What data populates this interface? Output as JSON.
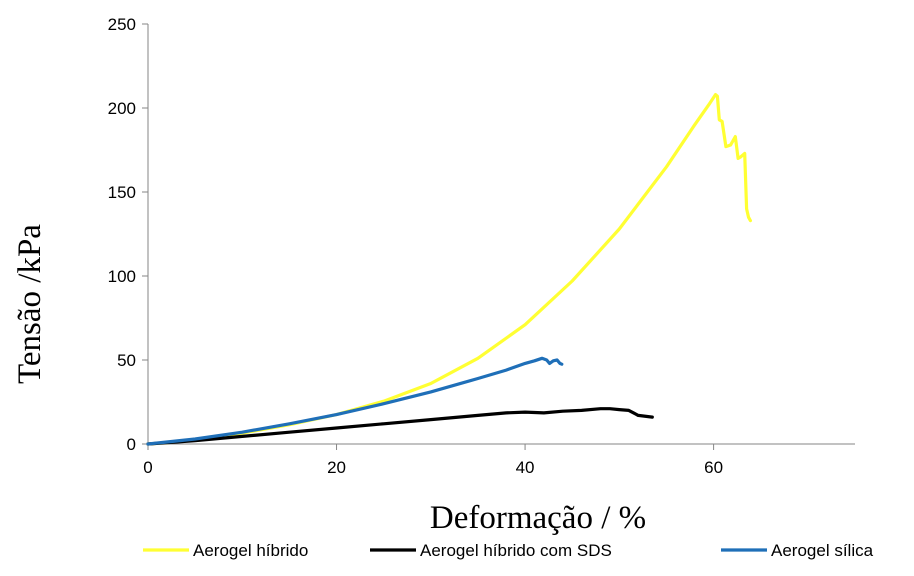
{
  "chart_data": {
    "type": "line",
    "title": "",
    "xlabel": "Deformação / %",
    "ylabel": "Tensão /kPa",
    "xlim": [
      0,
      75
    ],
    "ylim": [
      0,
      250
    ],
    "x_ticks": [
      0,
      20,
      40,
      60
    ],
    "y_ticks": [
      0,
      50,
      100,
      150,
      200,
      250
    ],
    "grid": false,
    "legend_position": "bottom",
    "series": [
      {
        "name": "Aerogel híbrido",
        "color": "#FFFF33",
        "x": [
          0,
          2,
          5,
          10,
          15,
          20,
          25,
          30,
          35,
          40,
          45,
          50,
          55,
          58,
          59.5,
          60.2,
          60.4,
          60.6,
          60.9,
          61.3,
          61.8,
          62.3,
          62.6,
          62.9,
          63.3,
          63.5,
          63.7,
          63.9
        ],
        "y": [
          0,
          0.8,
          2.5,
          6.5,
          11.5,
          17.5,
          25.5,
          36,
          51,
          71,
          97,
          128,
          165,
          190,
          202,
          208,
          207,
          193,
          192,
          177,
          178,
          183,
          170,
          171,
          173,
          140,
          135,
          133
        ]
      },
      {
        "name": "Aerogel híbrido com SDS",
        "color": "#000000",
        "x": [
          0,
          5,
          10,
          15,
          20,
          25,
          30,
          35,
          38,
          40,
          42,
          44,
          46,
          48,
          49,
          50,
          51,
          52,
          53.5
        ],
        "y": [
          0,
          2,
          4.5,
          7,
          9.5,
          12,
          14.5,
          17,
          18.5,
          19,
          18.5,
          19.5,
          20,
          21,
          21,
          20.5,
          20,
          17,
          16
        ]
      },
      {
        "name": "Aerogel sílica",
        "color": "#1F6FB8",
        "x": [
          0,
          5,
          10,
          15,
          20,
          25,
          30,
          35,
          38,
          40,
          41,
          41.8,
          42.3,
          42.6,
          43,
          43.4,
          43.7,
          43.9
        ],
        "y": [
          0,
          3,
          7,
          12,
          17.5,
          24,
          31,
          39,
          44,
          48,
          49.5,
          51,
          50,
          48,
          49.5,
          50,
          48,
          47.5
        ]
      }
    ]
  }
}
